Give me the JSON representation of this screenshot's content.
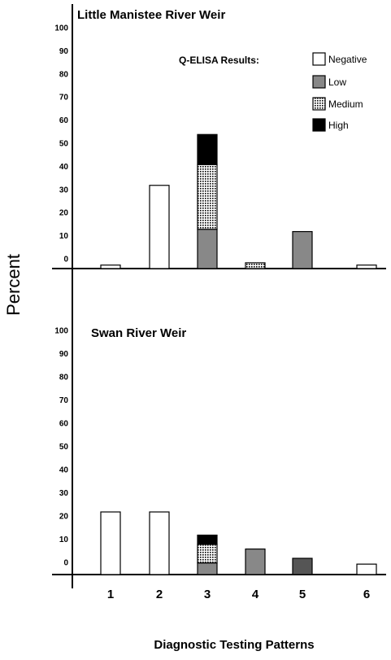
{
  "chart_data": {
    "type": "bar",
    "stacked": true,
    "ylabel": "Percent",
    "xlabel": "Diagnostic Testing Patterns",
    "categories": [
      "1",
      "2",
      "3",
      "4",
      "5",
      "6"
    ],
    "yticks": [
      0,
      10,
      20,
      30,
      40,
      50,
      60,
      70,
      80,
      90,
      100
    ],
    "ylim": [
      0,
      100
    ],
    "grid": false,
    "legend": {
      "title": "Q-ELISA Results:",
      "position": "top-right",
      "entries": [
        {
          "name": "Negative",
          "fill": "white"
        },
        {
          "name": "Low",
          "fill": "gray"
        },
        {
          "name": "Medium",
          "fill": "dotted"
        },
        {
          "name": "High",
          "fill": "black"
        }
      ]
    },
    "colors": {
      "Negative": "#ffffff",
      "Low": "#888888",
      "High": "#000000",
      "Swan5": "#555555"
    },
    "panels": [
      {
        "title": "Little Manistee River Weir",
        "series": [
          {
            "name": "Negative",
            "values": [
              1.5,
              36,
              0,
              0,
              0,
              1.5
            ]
          },
          {
            "name": "Low",
            "values": [
              0,
              0,
              17,
              0,
              16,
              0
            ]
          },
          {
            "name": "Medium",
            "values": [
              0,
              0,
              28,
              2.5,
              0,
              0
            ]
          },
          {
            "name": "High",
            "values": [
              0,
              0,
              13,
              0,
              0,
              0
            ]
          }
        ]
      },
      {
        "title": "Swan River Weir",
        "series": [
          {
            "name": "Negative",
            "values": [
              27,
              27,
              0,
              0,
              0,
              4.5
            ]
          },
          {
            "name": "Low",
            "values": [
              0,
              0,
              5,
              11,
              7,
              0
            ]
          },
          {
            "name": "Medium",
            "values": [
              0,
              0,
              8,
              0,
              0,
              0
            ]
          },
          {
            "name": "High",
            "values": [
              0,
              0,
              4,
              0,
              0,
              0
            ]
          }
        ]
      }
    ]
  }
}
